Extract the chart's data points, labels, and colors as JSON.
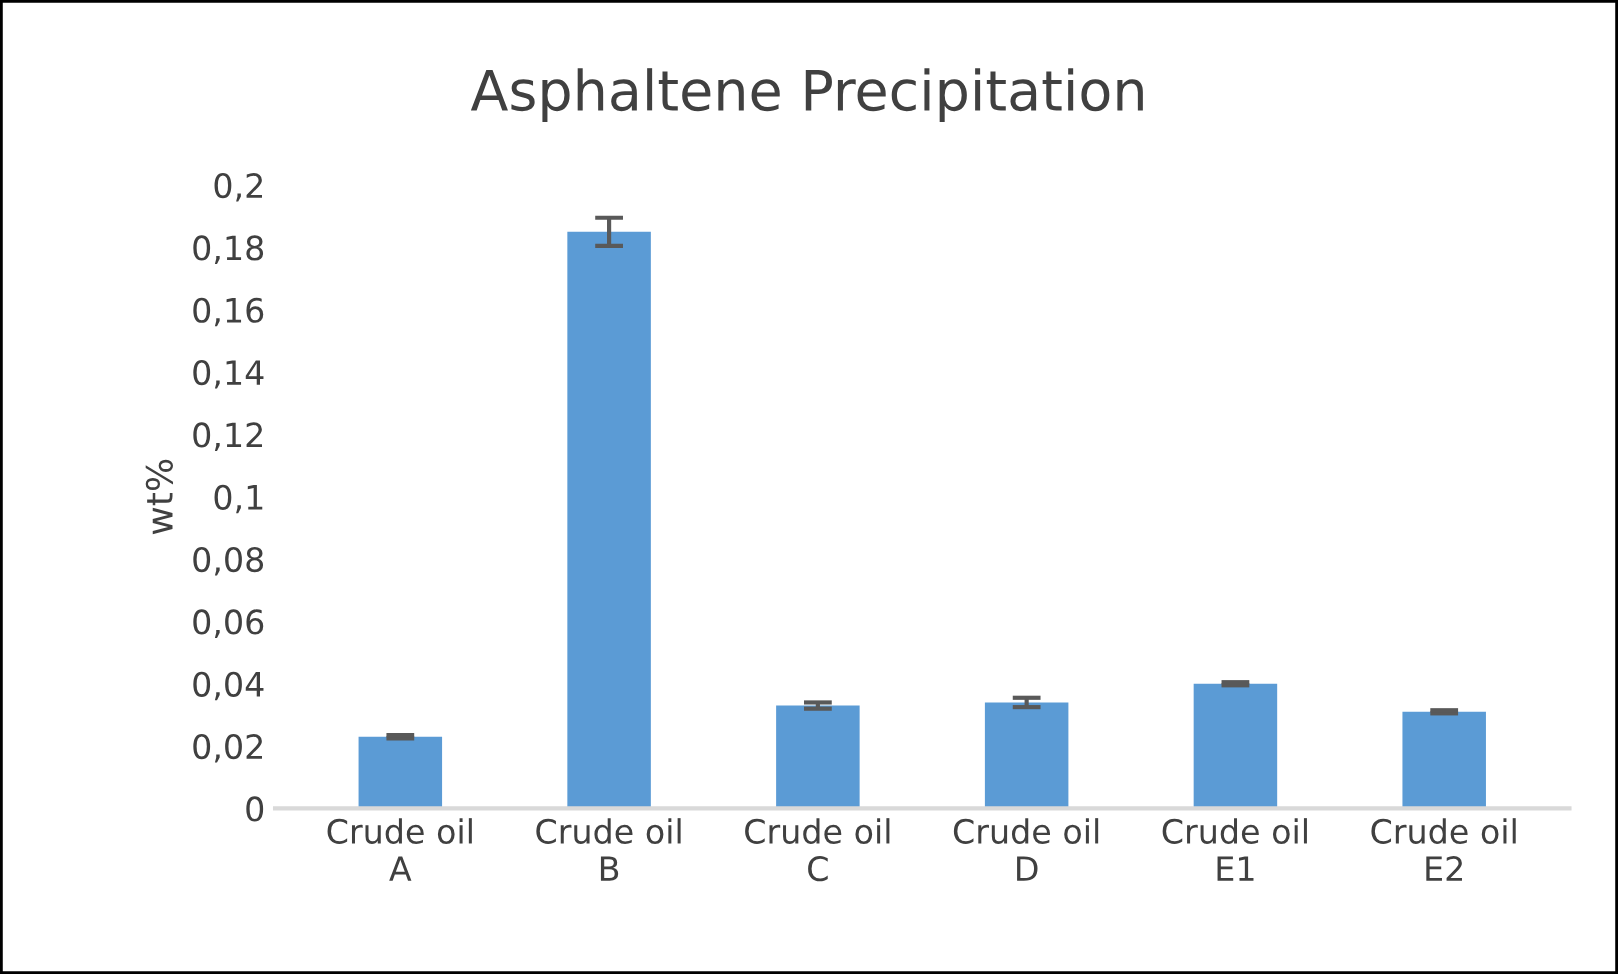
{
  "chart_data": {
    "type": "bar",
    "title": "Asphaltene Precipitation",
    "ylabel": "wt%",
    "categories": [
      "Crude oil A",
      "Crude oil B",
      "Crude oil C",
      "Crude oil D",
      "Crude oil E1",
      "Crude oil E2"
    ],
    "values": [
      0.023,
      0.185,
      0.033,
      0.034,
      0.04,
      0.031
    ],
    "errors": [
      0.0005,
      0.0045,
      0.001,
      0.0015,
      0.0005,
      0.0005
    ],
    "color": "#5b9bd5",
    "ylim": [
      0,
      0.2
    ],
    "yticks": [
      {
        "value": 0,
        "label": "0"
      },
      {
        "value": 0.02,
        "label": "0,02"
      },
      {
        "value": 0.04,
        "label": "0,04"
      },
      {
        "value": 0.06,
        "label": "0,06"
      },
      {
        "value": 0.08,
        "label": "0,08"
      },
      {
        "value": 0.1,
        "label": "0,1"
      },
      {
        "value": 0.12,
        "label": "0,12"
      },
      {
        "value": 0.14,
        "label": "0,14"
      },
      {
        "value": 0.16,
        "label": "0,16"
      },
      {
        "value": 0.18,
        "label": "0,18"
      },
      {
        "value": 0.2,
        "label": "0,2"
      }
    ],
    "grid": false
  }
}
